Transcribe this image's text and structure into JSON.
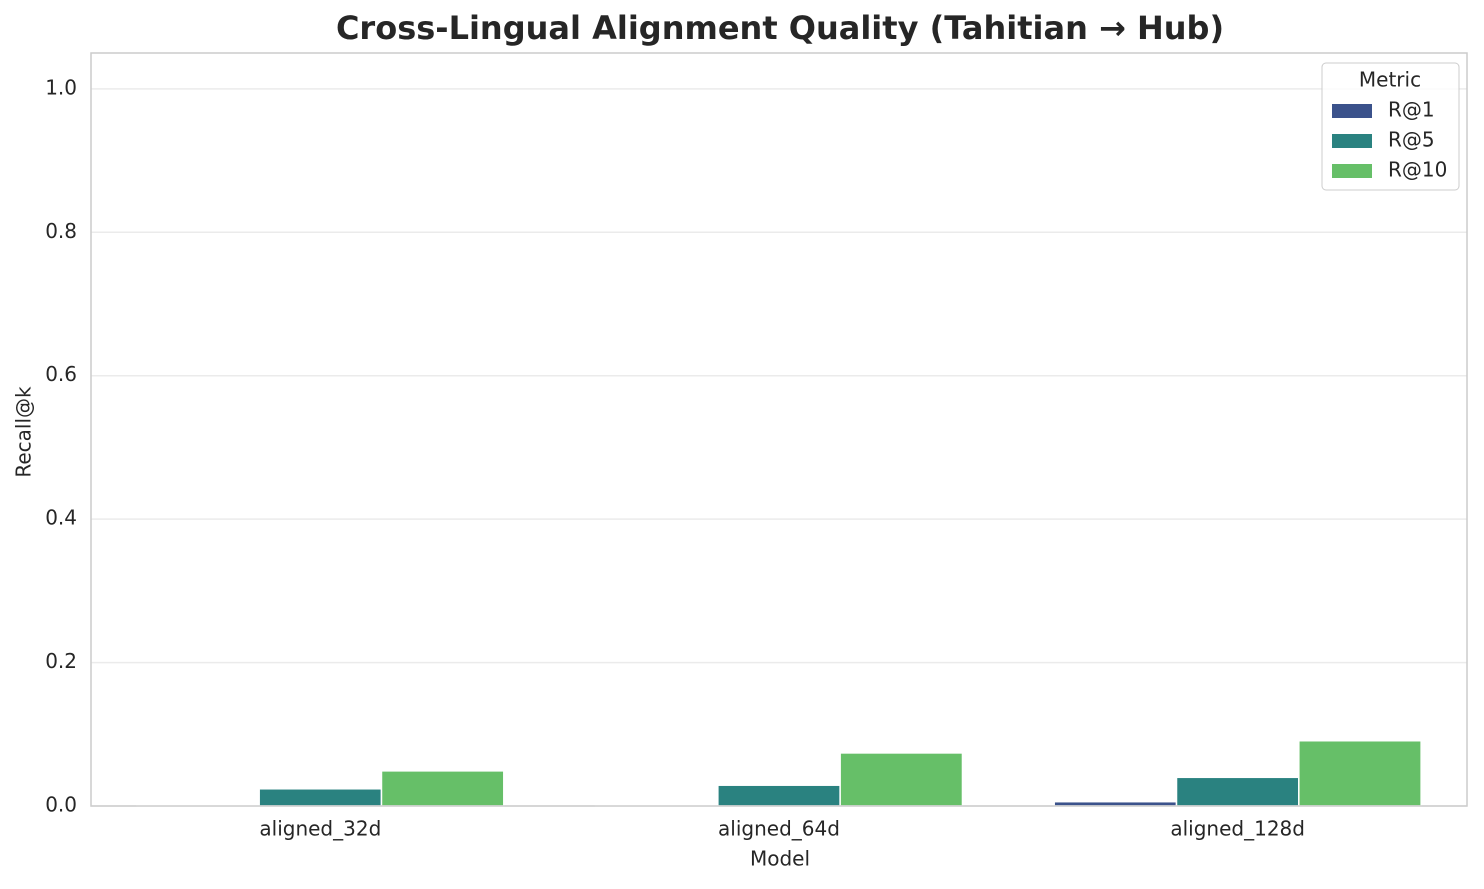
{
  "chart_data": {
    "type": "bar",
    "title": "Cross-Lingual Alignment Quality (Tahitian → Hub)",
    "x_label": "Model",
    "y_label": "Recall@k",
    "categories": [
      "aligned_32d",
      "aligned_64d",
      "aligned_128d"
    ],
    "series": [
      {
        "name": "R@1",
        "color": "#3b528b",
        "values": [
          0.001,
          0.001,
          0.006
        ]
      },
      {
        "name": "R@5",
        "color": "#2a8280",
        "values": [
          0.024,
          0.029,
          0.04
        ]
      },
      {
        "name": "R@10",
        "color": "#66bf68",
        "values": [
          0.049,
          0.074,
          0.091
        ]
      }
    ],
    "legend_title": "Metric",
    "legend_position": "upper right",
    "ylim": [
      0,
      1.05
    ],
    "yticks": [
      {
        "value": 0,
        "label": "0.0"
      },
      {
        "value": 0.2,
        "label": "0.2"
      },
      {
        "value": 0.4,
        "label": "0.4"
      },
      {
        "value": 0.6,
        "label": "0.6"
      },
      {
        "value": 0.8,
        "label": "0.8"
      },
      {
        "value": 1,
        "label": "1.0"
      }
    ],
    "grid": true
  }
}
